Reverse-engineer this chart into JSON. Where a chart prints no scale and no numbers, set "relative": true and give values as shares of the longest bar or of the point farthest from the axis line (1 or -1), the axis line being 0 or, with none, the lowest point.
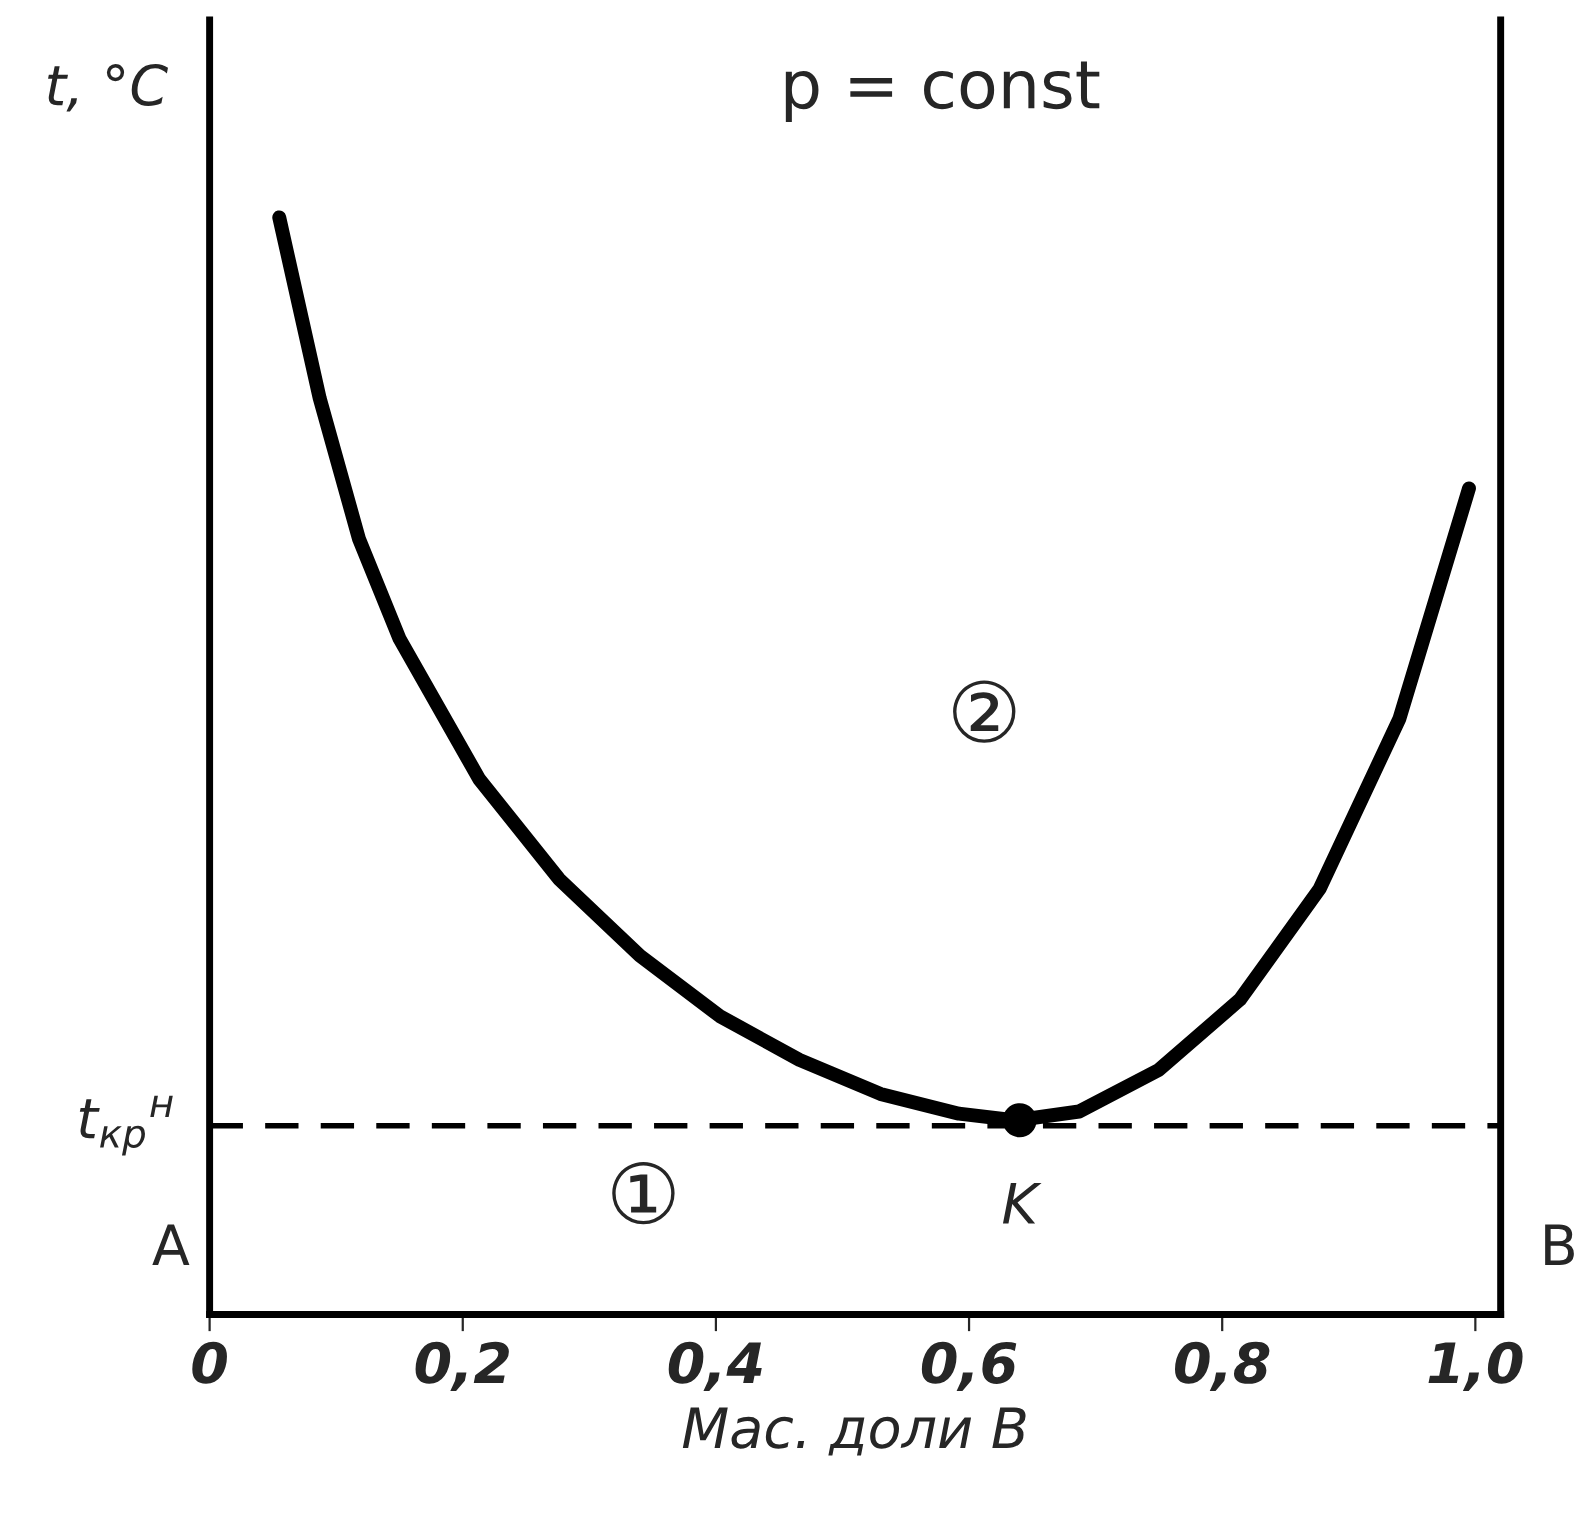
{
  "chart_data": {
    "type": "line",
    "relative": true,
    "xlabel": "Мас. доли B",
    "ylabel": "t, °C",
    "xlim": [
      0,
      1.02
    ],
    "xticks": [
      0,
      {
        "value": 0.2,
        "label": "0,2"
      },
      {
        "value": 0.4,
        "label": "0,4"
      },
      {
        "value": 0.6,
        "label": "0,6"
      },
      {
        "value": 0.8,
        "label": "0,8"
      },
      {
        "value": 1.0,
        "label": "1,0"
      }
    ],
    "tick_labels": "x",
    "grid": false,
    "legend": false,
    "series": [
      {
        "color": "#000000",
        "marker": "none",
        "line_style": "solid",
        "x": [
          0.055,
          0.087,
          0.118,
          0.15,
          0.213,
          0.276,
          0.34,
          0.403,
          0.466,
          0.53,
          0.592,
          0.637,
          0.687,
          0.75,
          0.814,
          0.877,
          0.94,
          0.995
        ],
        "values": [
          1.0,
          0.835,
          0.707,
          0.616,
          0.488,
          0.397,
          0.327,
          0.272,
          0.232,
          0.201,
          0.183,
          0.177,
          0.185,
          0.223,
          0.287,
          0.388,
          0.543,
          0.753
        ]
      },
      {
        "type": "scatter",
        "color": "#000000",
        "marker": "circle",
        "x": [
          0.64
        ],
        "values": [
          0.177
        ]
      }
    ],
    "ref_lines": [
      {
        "axis": "y",
        "value": 0.172,
        "label": "t$_{кр}$$^{н}$",
        "color": "#000000",
        "line_style": "dashed"
      }
    ],
    "annotations": [
      "p = const",
      "②",
      "①",
      "A",
      "B",
      {
        "text": "K",
        "x": 0.64,
        "y": 0.177
      }
    ]
  }
}
